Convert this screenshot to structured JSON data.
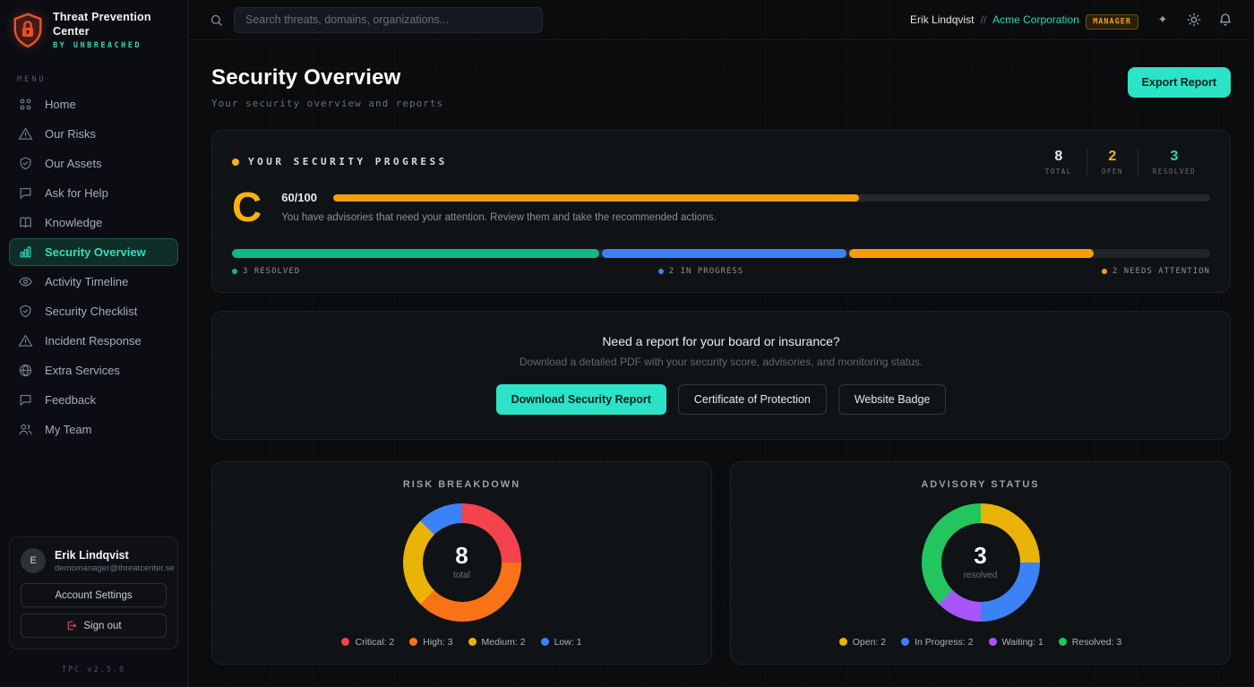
{
  "app": {
    "title": "Threat Prevention Center",
    "byline": "BY UNBREACHED",
    "version": "TPC v2.5.0"
  },
  "topbar": {
    "search_placeholder": "Search threats, domains, organizations...",
    "user_name": "Erik Lindqvist",
    "separator": "//",
    "org_name": "Acme Corporation",
    "role_badge": "MANAGER",
    "icons": [
      "sparkle-icon",
      "sun-icon",
      "bell-icon"
    ]
  },
  "sidebar": {
    "menu_label": "MENU",
    "items": [
      {
        "label": "Home",
        "icon": "grid-icon",
        "active": false
      },
      {
        "label": "Our Risks",
        "icon": "alert-triangle-icon",
        "active": false
      },
      {
        "label": "Our Assets",
        "icon": "shield-check-icon",
        "active": false
      },
      {
        "label": "Ask for Help",
        "icon": "chat-icon",
        "active": false
      },
      {
        "label": "Knowledge",
        "icon": "book-icon",
        "active": false
      },
      {
        "label": "Security Overview",
        "icon": "bar-chart-icon",
        "active": true
      },
      {
        "label": "Activity Timeline",
        "icon": "eye-icon",
        "active": false
      },
      {
        "label": "Security Checklist",
        "icon": "shield-check-icon",
        "active": false
      },
      {
        "label": "Incident Response",
        "icon": "alert-triangle-icon",
        "active": false
      },
      {
        "label": "Extra Services",
        "icon": "globe-icon",
        "active": false
      },
      {
        "label": "Feedback",
        "icon": "chat-icon",
        "active": false
      },
      {
        "label": "My Team",
        "icon": "users-icon",
        "active": false
      }
    ]
  },
  "user_card": {
    "initial": "E",
    "name": "Erik Lindqvist",
    "email": "demomanager@threatcenter.se",
    "account_settings_label": "Account Settings",
    "sign_out_label": "Sign out"
  },
  "header": {
    "title": "Security Overview",
    "subtitle": "Your security overview and reports",
    "export_label": "Export Report"
  },
  "progress_card": {
    "title": "YOUR SECURITY PROGRESS",
    "title_dot_color": "#f6b20d",
    "stats": [
      {
        "value": "8",
        "label": "TOTAL",
        "color": "#e8eaed"
      },
      {
        "value": "2",
        "label": "OPEN",
        "color": "#f6b20d"
      },
      {
        "value": "3",
        "label": "RESOLVED",
        "color": "#34d399"
      }
    ],
    "grade": "C",
    "score": "60/100",
    "score_pct": 60,
    "score_bar_color": "#f59e0b",
    "caption": "You have advisories that need your attention. Review them and take the recommended actions.",
    "segments": [
      {
        "label": "3 RESOLVED",
        "pct": 37.5,
        "color": "#10b981"
      },
      {
        "label": "2 IN PROGRESS",
        "pct": 25,
        "color": "#3b82f6"
      },
      {
        "label": "2 NEEDS ATTENTION",
        "pct": 25,
        "color": "#f59e0b"
      }
    ]
  },
  "report_card": {
    "heading": "Need a report for your board or insurance?",
    "subheading": "Download a detailed PDF with your security score, advisories, and monitoring status.",
    "primary_button": "Download Security Report",
    "secondary_buttons": [
      "Certificate of Protection",
      "Website Badge"
    ]
  },
  "chart_data": [
    {
      "type": "pie",
      "title": "RISK BREAKDOWN",
      "center_value": "8",
      "center_label": "total",
      "slices": [
        {
          "label": "Critical",
          "value": 2,
          "color": "#f4434d"
        },
        {
          "label": "High",
          "value": 3,
          "color": "#f97316"
        },
        {
          "label": "Medium",
          "value": 2,
          "color": "#eab308"
        },
        {
          "label": "Low",
          "value": 1,
          "color": "#3b82f6"
        }
      ]
    },
    {
      "type": "pie",
      "title": "ADVISORY STATUS",
      "center_value": "3",
      "center_label": "resolved",
      "slices": [
        {
          "label": "Open",
          "value": 2,
          "color": "#eab308"
        },
        {
          "label": "In Progress",
          "value": 2,
          "color": "#3b82f6"
        },
        {
          "label": "Waiting",
          "value": 1,
          "color": "#a855f7"
        },
        {
          "label": "Resolved",
          "value": 3,
          "color": "#22c55e"
        }
      ]
    }
  ]
}
